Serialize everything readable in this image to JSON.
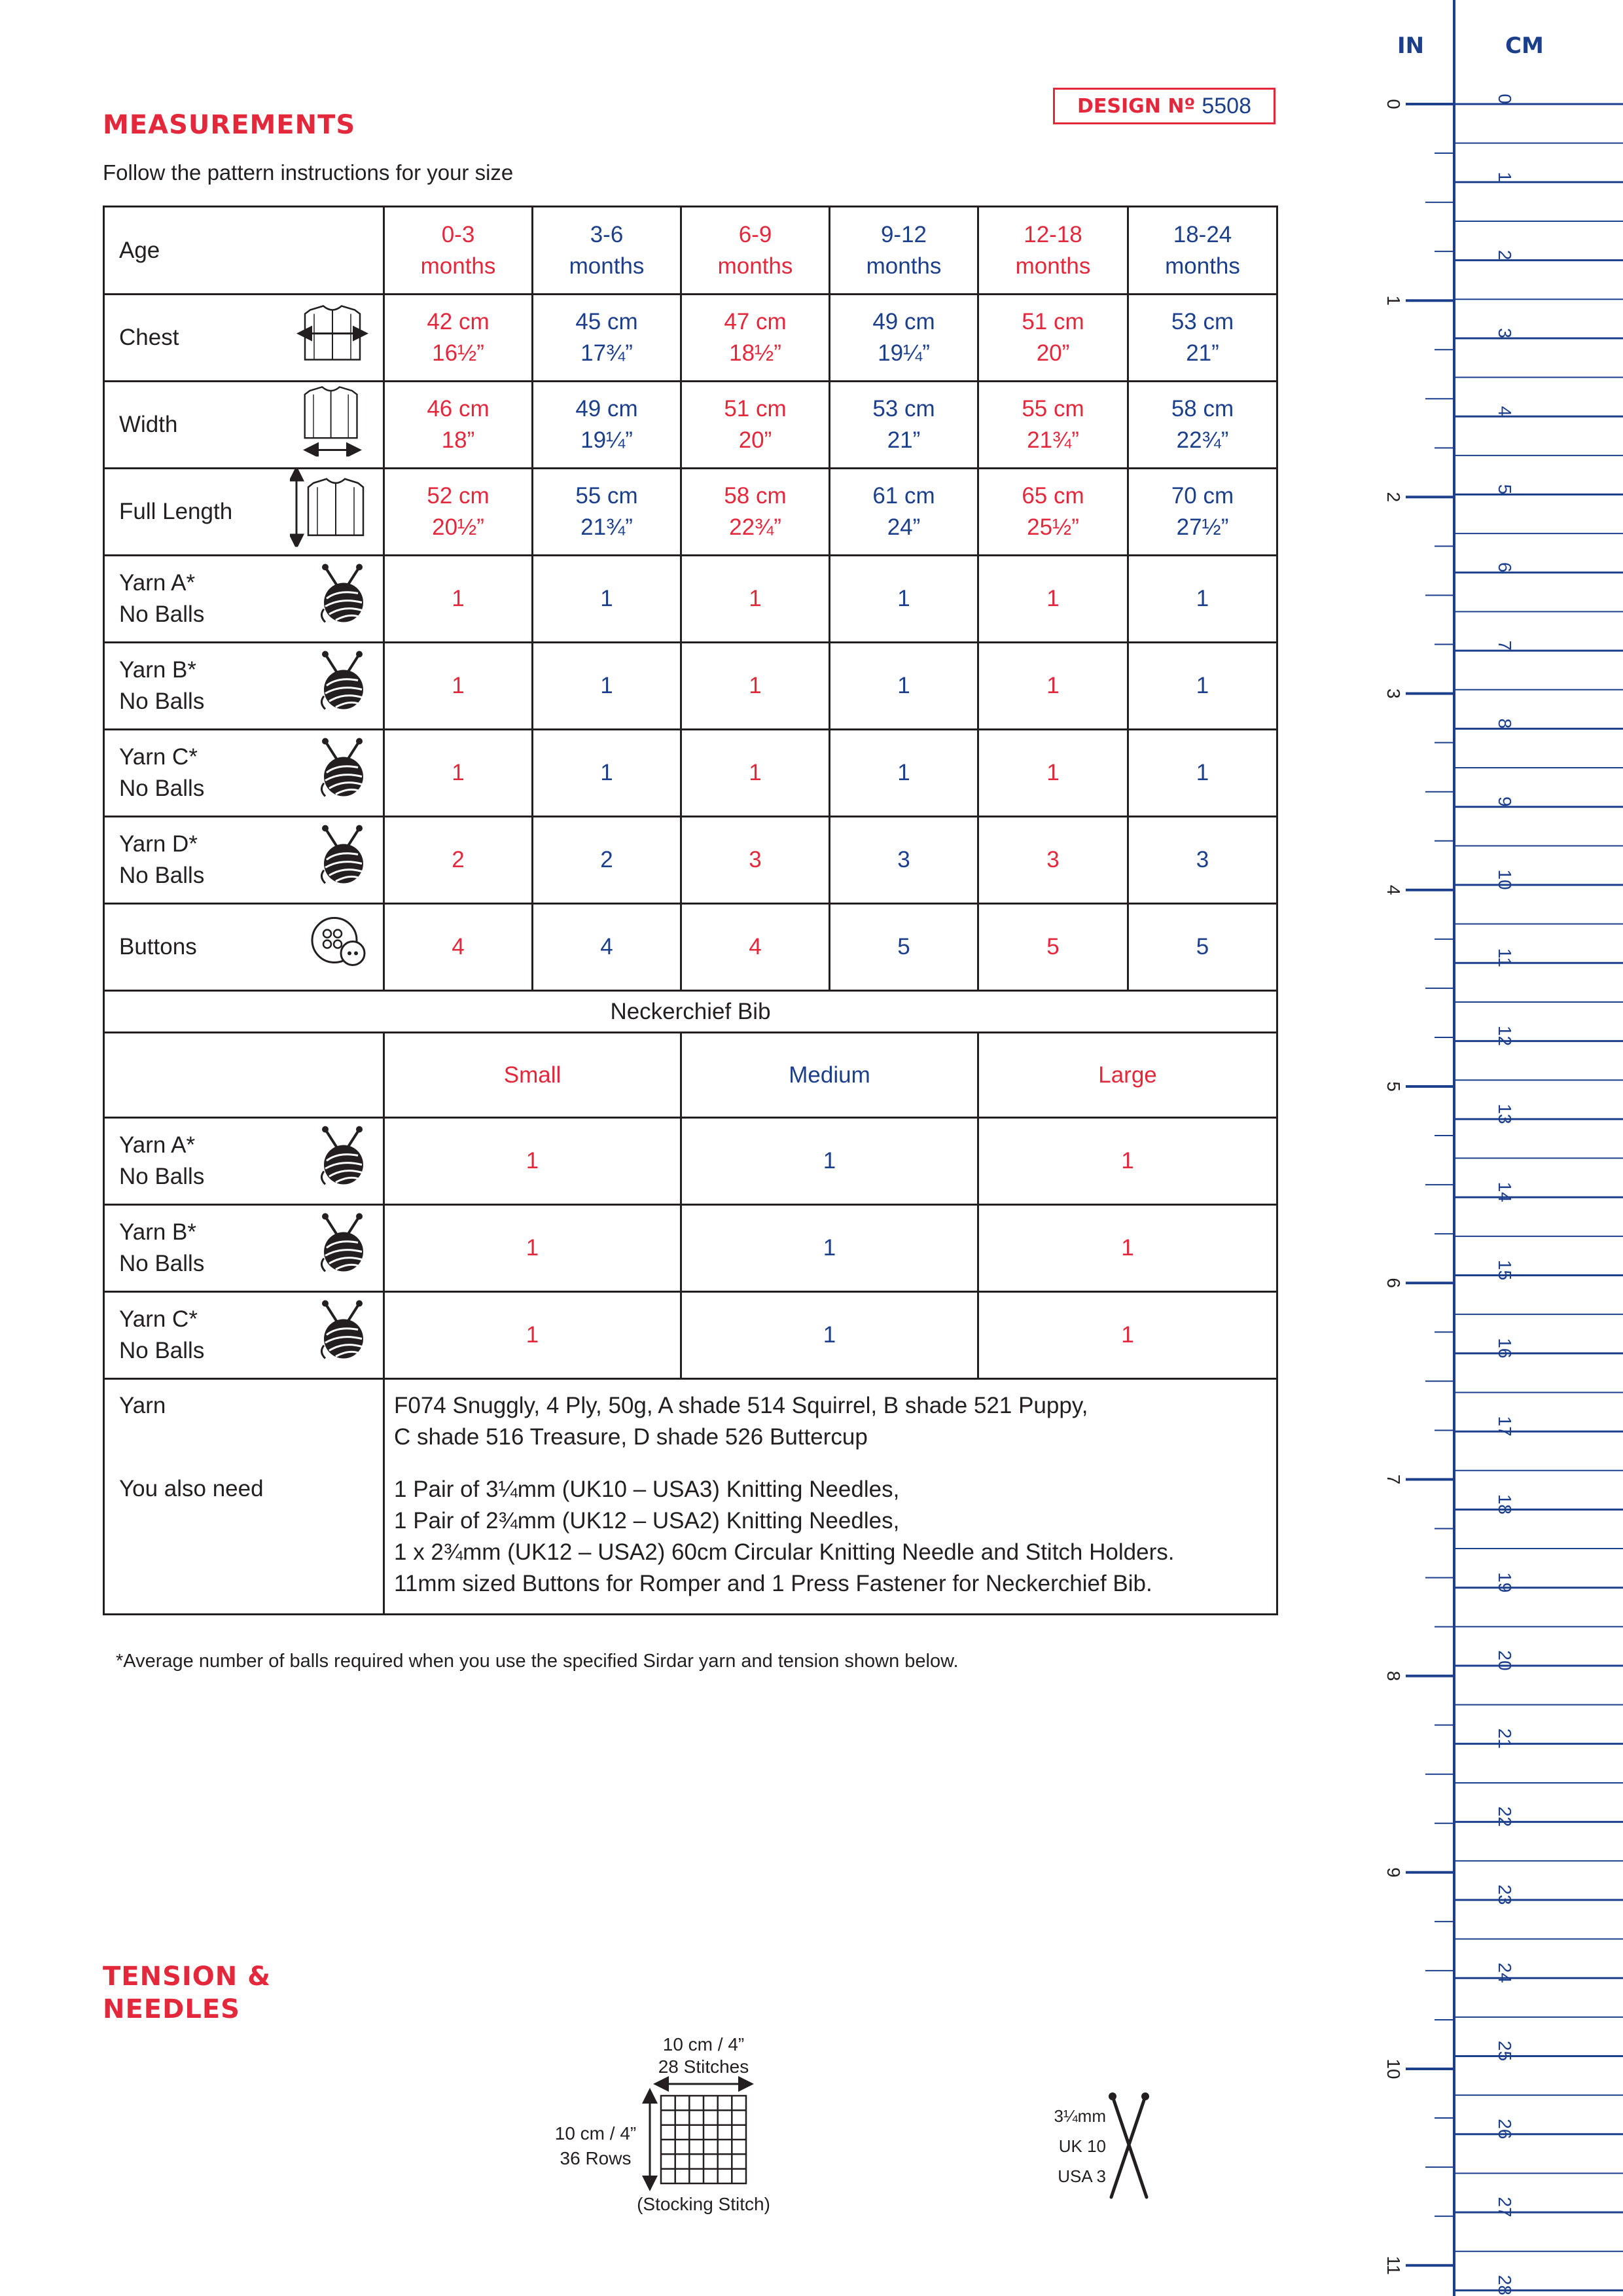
{
  "design": {
    "label": "DESIGN Nº",
    "number": "5508"
  },
  "measurements": {
    "heading": "MEASUREMENTS",
    "intro": "Follow the pattern instructions for your size",
    "sizes": [
      {
        "l1": "0-3",
        "l2": "months"
      },
      {
        "l1": "3-6",
        "l2": "months"
      },
      {
        "l1": "6-9",
        "l2": "months"
      },
      {
        "l1": "9-12",
        "l2": "months"
      },
      {
        "l1": "12-18",
        "l2": "months"
      },
      {
        "l1": "18-24",
        "l2": "months"
      }
    ],
    "age_label": "Age",
    "chest": {
      "label": "Chest",
      "icon": "cardigan-chest-icon",
      "values": [
        [
          "42 cm",
          "16½”"
        ],
        [
          "45 cm",
          "17¾”"
        ],
        [
          "47 cm",
          "18½”"
        ],
        [
          "49 cm",
          "19¼”"
        ],
        [
          "51 cm",
          "20”"
        ],
        [
          "53 cm",
          "21”"
        ]
      ]
    },
    "width": {
      "label": "Width",
      "icon": "cardigan-width-icon",
      "values": [
        [
          "46 cm",
          "18”"
        ],
        [
          "49 cm",
          "19¼”"
        ],
        [
          "51 cm",
          "20”"
        ],
        [
          "53 cm",
          "21”"
        ],
        [
          "55 cm",
          "21¾”"
        ],
        [
          "58 cm",
          "22¾”"
        ]
      ]
    },
    "length": {
      "label": "Full Length",
      "icon": "cardigan-length-icon",
      "values": [
        [
          "52 cm",
          "20½”"
        ],
        [
          "55 cm",
          "21¾”"
        ],
        [
          "58 cm",
          "22¾”"
        ],
        [
          "61 cm",
          "24”"
        ],
        [
          "65 cm",
          "25½”"
        ],
        [
          "70 cm",
          "27½”"
        ]
      ]
    },
    "yarns": [
      {
        "l1": "Yarn A*",
        "l2": "No Balls",
        "values": [
          "1",
          "1",
          "1",
          "1",
          "1",
          "1"
        ]
      },
      {
        "l1": "Yarn B*",
        "l2": "No Balls",
        "values": [
          "1",
          "1",
          "1",
          "1",
          "1",
          "1"
        ]
      },
      {
        "l1": "Yarn C*",
        "l2": "No Balls",
        "values": [
          "1",
          "1",
          "1",
          "1",
          "1",
          "1"
        ]
      },
      {
        "l1": "Yarn D*",
        "l2": "No Balls",
        "values": [
          "2",
          "2",
          "3",
          "3",
          "3",
          "3"
        ]
      }
    ],
    "buttons": {
      "label": "Buttons",
      "icon": "button-icon",
      "values": [
        "4",
        "4",
        "4",
        "5",
        "5",
        "5"
      ]
    },
    "bib": {
      "title": "Neckerchief Bib",
      "sizes": [
        "Small",
        "Medium",
        "Large"
      ],
      "yarns": [
        {
          "l1": "Yarn A*",
          "l2": "No Balls",
          "values": [
            "1",
            "1",
            "1"
          ]
        },
        {
          "l1": "Yarn B*",
          "l2": "No Balls",
          "values": [
            "1",
            "1",
            "1"
          ]
        },
        {
          "l1": "Yarn C*",
          "l2": "No Balls",
          "values": [
            "1",
            "1",
            "1"
          ]
        }
      ]
    },
    "yarn_label": "Yarn",
    "yarn_lines": [
      "F074 Snuggly, 4 Ply, 50g, A shade 514 Squirrel, B shade 521 Puppy,",
      "C shade 516 Treasure, D shade 526 Buttercup"
    ],
    "also_label": "You also need",
    "also_lines": [
      "1 Pair of 3¼mm (UK10 – USA3) Knitting Needles,",
      "1 Pair of 2¾mm (UK12 – USA2) Knitting Needles,",
      "1 x 2¾mm (UK12 – USA2) 60cm Circular Knitting Needle and Stitch Holders.",
      "11mm sized Buttons for Romper and 1 Press Fastener for Neckerchief Bib."
    ],
    "footnote": "*Average number of balls required when you use the specified Sirdar yarn and tension shown below."
  },
  "tension": {
    "heading1": "TENSION &",
    "heading2": "NEEDLES",
    "width": "10 cm / 4”",
    "stitches": "28 Stitches",
    "height": "10 cm / 4”",
    "rows": "36 Rows",
    "stitch_type": "(Stocking Stitch)",
    "needle_mm": "3¼mm",
    "needle_uk": "UK 10",
    "needle_usa": "USA 3"
  },
  "ruler": {
    "in_label": "IN",
    "cm_label": "CM",
    "color": "#1c3f8c"
  },
  "colors": {
    "red": "#e3283c",
    "blue": "#1c3f8c"
  }
}
